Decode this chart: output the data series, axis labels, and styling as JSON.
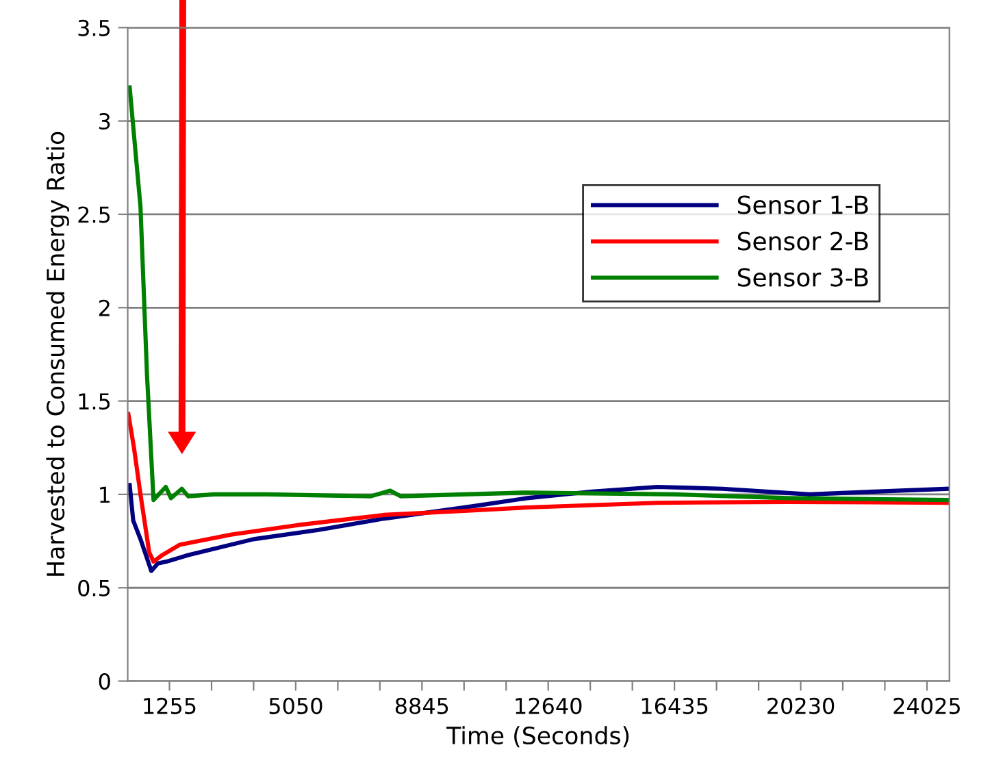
{
  "chart_data": {
    "type": "line",
    "xlabel": "Time (Seconds)",
    "ylabel": "Harvested to Consumed Energy Ratio",
    "xlim": [
      0,
      24700
    ],
    "ylim": [
      0,
      3.5
    ],
    "xticks": [
      1255,
      {
        "value": 2520,
        "label": null
      },
      {
        "value": 3785,
        "label": null
      },
      5050,
      {
        "value": 6315,
        "label": null
      },
      {
        "value": 7580,
        "label": null
      },
      8845,
      {
        "value": 10110,
        "label": null
      },
      {
        "value": 11375,
        "label": null
      },
      12640,
      {
        "value": 13905,
        "label": null
      },
      {
        "value": 15170,
        "label": null
      },
      16435,
      {
        "value": 17700,
        "label": null
      },
      {
        "value": 18965,
        "label": null
      },
      20230,
      {
        "value": 21495,
        "label": null
      },
      {
        "value": 22760,
        "label": null
      },
      24025
    ],
    "yticks": [
      0,
      0.5,
      1,
      1.5,
      2,
      2.5,
      3,
      3.5
    ],
    "grid": "y",
    "legend": "right",
    "line_style": "solid",
    "marker": "none",
    "series": [
      {
        "name": "Sensor 1-B",
        "color": "#000080",
        "x": [
          59,
          166,
          384,
          710,
          906,
          1166,
          1821,
          3780,
          5738,
          7697,
          10317,
          12005,
          13966,
          15920,
          17880,
          20500,
          22460,
          24657
        ],
        "values": [
          1.05,
          0.86,
          0.76,
          0.59,
          0.63,
          0.64,
          0.675,
          0.76,
          0.81,
          0.87,
          0.935,
          0.98,
          1.015,
          1.04,
          1.03,
          1.0,
          1.015,
          1.03
        ]
      },
      {
        "name": "Sensor 2-B",
        "color": "#ff0000",
        "x": [
          20,
          188,
          384,
          646,
          776,
          1038,
          1560,
          3127,
          5085,
          7697,
          9917,
          12005,
          15920,
          19840,
          24657
        ],
        "values": [
          1.43,
          1.25,
          1.0,
          0.69,
          0.64,
          0.675,
          0.73,
          0.785,
          0.835,
          0.89,
          0.91,
          0.93,
          0.955,
          0.96,
          0.955
        ]
      },
      {
        "name": "Sensor 3-B",
        "color": "#008000",
        "x": [
          59,
          384,
          580,
          776,
          1144,
          1300,
          1626,
          1821,
          2605,
          4172,
          7305,
          7892,
          8205,
          12005,
          16432,
          19840,
          24657
        ],
        "values": [
          3.18,
          2.54,
          1.64,
          0.97,
          1.04,
          0.98,
          1.03,
          0.99,
          1.0,
          1.0,
          0.99,
          1.02,
          0.99,
          1.01,
          1.0,
          0.98,
          0.97
        ]
      }
    ]
  }
}
